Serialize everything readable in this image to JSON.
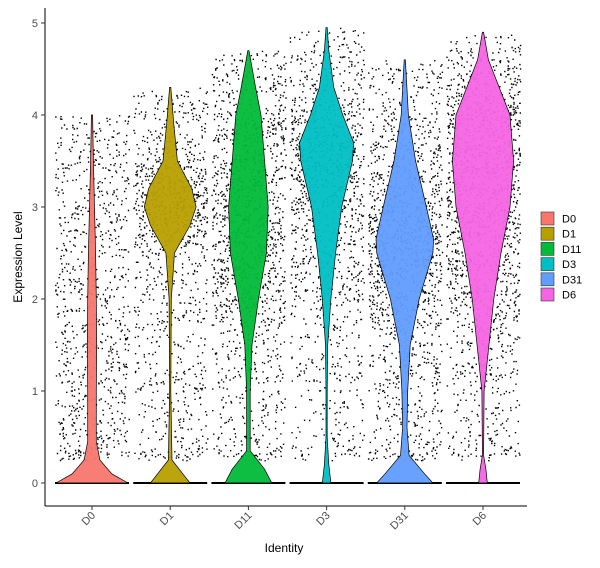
{
  "chart_data": {
    "type": "violin",
    "title": "",
    "xlabel": "Identity",
    "ylabel": "Expression Level",
    "ylim": [
      0,
      5
    ],
    "yticks": [
      "0",
      "1",
      "2",
      "3",
      "4",
      "5"
    ],
    "grid": false,
    "legend_position": "right",
    "categories": [
      "D0",
      "D1",
      "D11",
      "D3",
      "D31",
      "D6"
    ],
    "series": [
      {
        "name": "D0",
        "color": "#F8766D",
        "max": 4.0,
        "profile": [
          [
            0.0,
            1.0
          ],
          [
            0.1,
            0.55
          ],
          [
            0.25,
            0.22
          ],
          [
            0.45,
            0.12
          ],
          [
            1.0,
            0.12
          ],
          [
            1.5,
            0.13
          ],
          [
            2.0,
            0.12
          ],
          [
            2.5,
            0.1
          ],
          [
            3.0,
            0.07
          ],
          [
            3.5,
            0.04
          ],
          [
            4.0,
            0.0
          ]
        ]
      },
      {
        "name": "D1",
        "color": "#B79F00",
        "max": 4.3,
        "profile": [
          [
            0.0,
            0.55
          ],
          [
            0.1,
            0.35
          ],
          [
            0.25,
            0.05
          ],
          [
            1.0,
            0.01
          ],
          [
            2.0,
            0.03
          ],
          [
            2.5,
            0.12
          ],
          [
            2.8,
            0.55
          ],
          [
            3.0,
            0.72
          ],
          [
            3.2,
            0.6
          ],
          [
            3.5,
            0.2
          ],
          [
            3.9,
            0.1
          ],
          [
            4.3,
            0.0
          ]
        ]
      },
      {
        "name": "D11",
        "color": "#00BA38",
        "max": 4.7,
        "profile": [
          [
            0.0,
            0.65
          ],
          [
            0.15,
            0.45
          ],
          [
            0.35,
            0.05
          ],
          [
            1.0,
            0.05
          ],
          [
            1.5,
            0.1
          ],
          [
            2.0,
            0.28
          ],
          [
            2.5,
            0.5
          ],
          [
            3.0,
            0.55
          ],
          [
            3.5,
            0.45
          ],
          [
            4.0,
            0.35
          ],
          [
            4.3,
            0.2
          ],
          [
            4.7,
            0.0
          ]
        ]
      },
      {
        "name": "D3",
        "color": "#00BFC4",
        "max": 4.95,
        "profile": [
          [
            0.0,
            0.12
          ],
          [
            0.2,
            0.06
          ],
          [
            0.5,
            0.01
          ],
          [
            1.0,
            0.01
          ],
          [
            1.5,
            0.03
          ],
          [
            2.0,
            0.12
          ],
          [
            2.5,
            0.25
          ],
          [
            3.0,
            0.42
          ],
          [
            3.5,
            0.72
          ],
          [
            3.7,
            0.75
          ],
          [
            4.0,
            0.45
          ],
          [
            4.3,
            0.2
          ],
          [
            4.7,
            0.06
          ],
          [
            4.95,
            0.0
          ]
        ]
      },
      {
        "name": "D31",
        "color": "#619CFF",
        "max": 4.6,
        "profile": [
          [
            0.0,
            0.78
          ],
          [
            0.1,
            0.55
          ],
          [
            0.3,
            0.12
          ],
          [
            0.6,
            0.06
          ],
          [
            1.0,
            0.08
          ],
          [
            1.5,
            0.15
          ],
          [
            2.0,
            0.4
          ],
          [
            2.5,
            0.78
          ],
          [
            2.65,
            0.8
          ],
          [
            3.0,
            0.6
          ],
          [
            3.5,
            0.3
          ],
          [
            4.0,
            0.1
          ],
          [
            4.6,
            0.0
          ]
        ]
      },
      {
        "name": "D6",
        "color": "#F564E3",
        "max": 4.9,
        "profile": [
          [
            0.0,
            0.12
          ],
          [
            0.15,
            0.08
          ],
          [
            0.3,
            0.01
          ],
          [
            1.0,
            0.03
          ],
          [
            2.0,
            0.3
          ],
          [
            2.5,
            0.5
          ],
          [
            3.0,
            0.75
          ],
          [
            3.5,
            0.85
          ],
          [
            4.0,
            0.75
          ],
          [
            4.3,
            0.45
          ],
          [
            4.6,
            0.15
          ],
          [
            4.9,
            0.0
          ]
        ]
      }
    ]
  }
}
